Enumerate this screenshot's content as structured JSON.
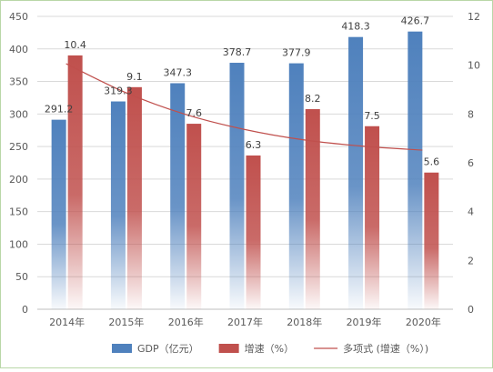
{
  "chart_data": {
    "type": "bar",
    "categories": [
      "2014年",
      "2015年",
      "2016年",
      "2017年",
      "2018年",
      "2019年",
      "2020年"
    ],
    "series": [
      {
        "name": "GDP（亿元）",
        "axis": "left",
        "color": "#4f81bd",
        "values": [
          291.2,
          319.3,
          347.3,
          378.7,
          377.9,
          418.3,
          426.7
        ],
        "labels": [
          "291.2",
          "319.3",
          "347.3",
          "378.7",
          "377.9",
          "418.3",
          "426.7"
        ]
      },
      {
        "name": "增速（%）",
        "axis": "right",
        "color": "#c0504d",
        "values": [
          10.4,
          9.1,
          7.6,
          6.3,
          8.2,
          7.5,
          5.6
        ],
        "labels": [
          "10.4",
          "9.1",
          "7.6",
          "6.3",
          "8.2",
          "7.5",
          "5.6"
        ]
      },
      {
        "name": "多项式 (增速（%）)",
        "type": "line",
        "axis": "right",
        "color": "#c0504d",
        "values": [
          10.06,
          8.88,
          7.99,
          7.37,
          6.94,
          6.68,
          6.52
        ]
      }
    ],
    "y_left": {
      "min": 0,
      "max": 450,
      "ticks": [
        "0",
        "50",
        "100",
        "150",
        "200",
        "250",
        "300",
        "350",
        "400",
        "450"
      ]
    },
    "y_right": {
      "min": 0,
      "max": 12,
      "ticks": [
        "0",
        "2",
        "4",
        "6",
        "8",
        "10",
        "12"
      ]
    },
    "grid": true,
    "legend_position": "bottom"
  }
}
